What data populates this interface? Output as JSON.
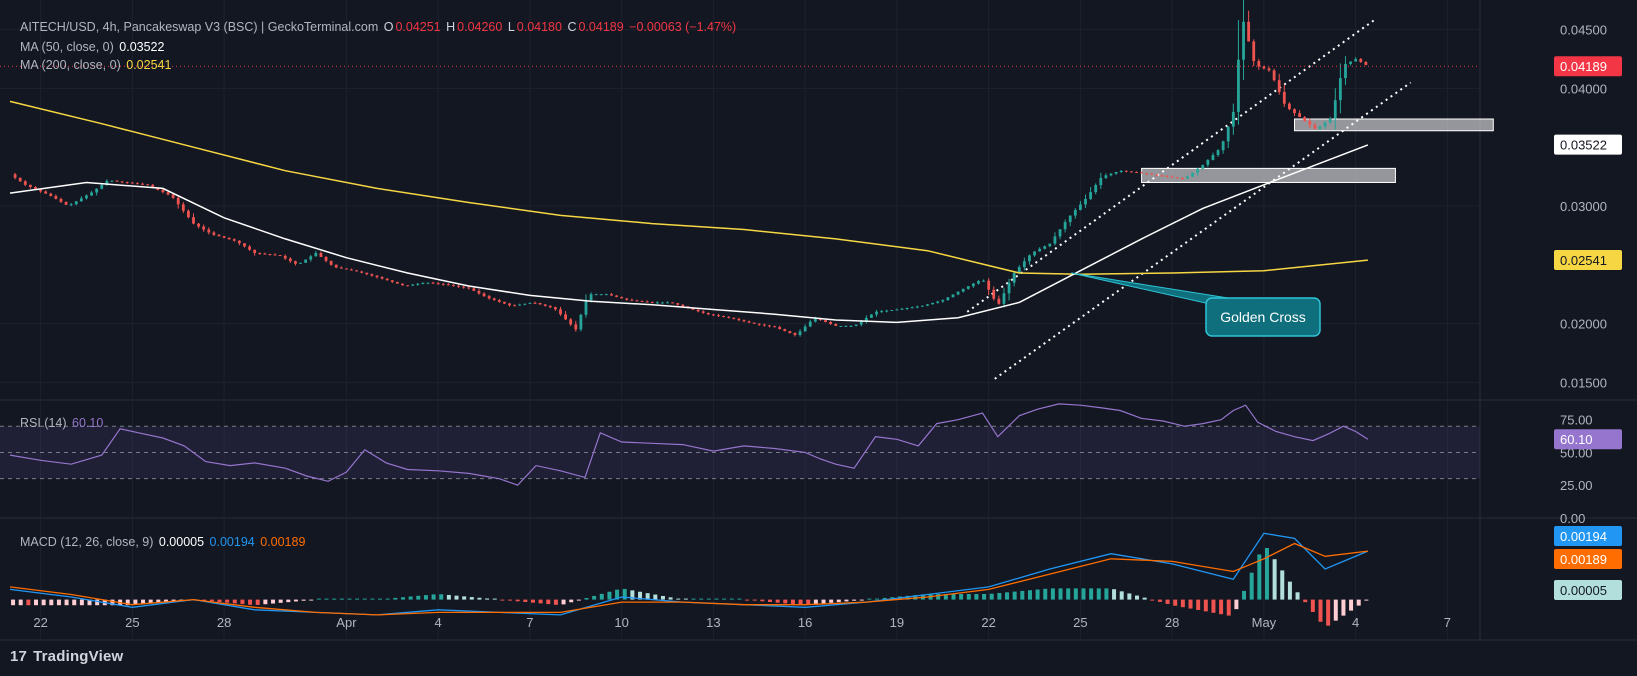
{
  "header": {
    "symbol": "AITECH/USD, 4h, Pancakeswap V3 (BSC) | GeckoTerminal.com",
    "o_label": "O",
    "o_value": "0.04251",
    "h_label": "H",
    "h_value": "0.04260",
    "l_label": "L",
    "l_value": "0.04180",
    "c_label": "C",
    "c_value": "0.04189",
    "change": "−0.00063 (−1.47%)"
  },
  "ma50": {
    "label": "MA (50, close, 0)",
    "value": "0.03522",
    "color": "#ffffff"
  },
  "ma200": {
    "label": "MA (200, close, 0)",
    "value": "0.02541",
    "color": "#f6d743"
  },
  "rsi": {
    "label": "RSI (14)",
    "value": "60.10",
    "color": "#9575cd"
  },
  "macd": {
    "label": "MACD (12, 26, close, 9)",
    "hist": "0.00005",
    "macd_line": "0.00194",
    "signal": "0.00189"
  },
  "annotation": {
    "text": "Golden Cross"
  },
  "branding": {
    "text": "TradingView",
    "mark": "17"
  },
  "colors": {
    "background": "#131722",
    "up": "#26a69a",
    "down": "#ef5350",
    "ma50": "#ffffff",
    "ma200": "#f6d743",
    "rsi": "#9575cd",
    "macd": "#2196f3",
    "signal": "#ff6d00",
    "annotation": "#0f6f7c"
  },
  "chart_data": {
    "type": "candlestick",
    "y_ticks": [
      "0.04500",
      "0.04000",
      "0.03522",
      "0.03000",
      "0.02541",
      "0.02000",
      "0.01500"
    ],
    "ylim": [
      0.0135,
      0.0465
    ],
    "x_ticks": [
      "22",
      "25",
      "28",
      "Apr",
      "4",
      "7",
      "10",
      "13",
      "16",
      "19",
      "22",
      "25",
      "28",
      "May",
      "4",
      "7"
    ],
    "x_domain": [
      "Mar 21",
      "May 8"
    ],
    "last_price": "0.04189",
    "price_path": [
      [
        0,
        0.0327
      ],
      [
        0.5,
        0.0318
      ],
      [
        1.3,
        0.0309
      ],
      [
        1.9,
        0.03
      ],
      [
        2.7,
        0.0312
      ],
      [
        3.2,
        0.0322
      ],
      [
        3.8,
        0.032
      ],
      [
        4.5,
        0.0318
      ],
      [
        5.3,
        0.0308
      ],
      [
        6.0,
        0.0285
      ],
      [
        6.6,
        0.0276
      ],
      [
        7.4,
        0.027
      ],
      [
        8.0,
        0.026
      ],
      [
        8.8,
        0.0258
      ],
      [
        9.4,
        0.025
      ],
      [
        10.0,
        0.026
      ],
      [
        10.6,
        0.0248
      ],
      [
        11.4,
        0.0244
      ],
      [
        12.2,
        0.0238
      ],
      [
        12.9,
        0.0232
      ],
      [
        13.6,
        0.0235
      ],
      [
        14.3,
        0.0233
      ],
      [
        15.0,
        0.023
      ],
      [
        15.6,
        0.0222
      ],
      [
        16.4,
        0.0215
      ],
      [
        17.1,
        0.0218
      ],
      [
        17.8,
        0.0213
      ],
      [
        18.5,
        0.0195
      ],
      [
        18.9,
        0.0225
      ],
      [
        19.5,
        0.0225
      ],
      [
        20.2,
        0.022
      ],
      [
        21.0,
        0.0218
      ],
      [
        21.6,
        0.0218
      ],
      [
        22.3,
        0.0212
      ],
      [
        22.8,
        0.0208
      ],
      [
        23.5,
        0.0205
      ],
      [
        24.3,
        0.02
      ],
      [
        25.0,
        0.0197
      ],
      [
        25.7,
        0.019
      ],
      [
        26.3,
        0.0205
      ],
      [
        27.0,
        0.0198
      ],
      [
        27.6,
        0.0198
      ],
      [
        28.3,
        0.021
      ],
      [
        29.0,
        0.0212
      ],
      [
        29.8,
        0.0215
      ],
      [
        30.5,
        0.022
      ],
      [
        31.2,
        0.023
      ],
      [
        31.8,
        0.0238
      ],
      [
        32.3,
        0.0215
      ],
      [
        32.8,
        0.0242
      ],
      [
        33.4,
        0.026
      ],
      [
        34.0,
        0.0268
      ],
      [
        34.6,
        0.029
      ],
      [
        35.2,
        0.0307
      ],
      [
        35.7,
        0.0325
      ],
      [
        36.3,
        0.033
      ],
      [
        37.0,
        0.0328
      ],
      [
        37.8,
        0.0325
      ],
      [
        38.4,
        0.0323
      ],
      [
        39.0,
        0.0335
      ],
      [
        39.6,
        0.035
      ],
      [
        40.0,
        0.038
      ],
      [
        40.3,
        0.046
      ],
      [
        40.7,
        0.042
      ],
      [
        41.2,
        0.0415
      ],
      [
        41.7,
        0.0385
      ],
      [
        42.2,
        0.0375
      ],
      [
        42.7,
        0.0365
      ],
      [
        43.2,
        0.0375
      ],
      [
        43.6,
        0.042
      ],
      [
        44.0,
        0.0425
      ],
      [
        44.4,
        0.0419
      ]
    ],
    "ma50_path": [
      [
        0,
        0.0311
      ],
      [
        2.5,
        0.032
      ],
      [
        5,
        0.0315
      ],
      [
        7,
        0.029
      ],
      [
        9,
        0.0272
      ],
      [
        11,
        0.0256
      ],
      [
        13,
        0.0243
      ],
      [
        15,
        0.0232
      ],
      [
        17,
        0.0224
      ],
      [
        19,
        0.0219
      ],
      [
        21,
        0.0216
      ],
      [
        23,
        0.0212
      ],
      [
        25,
        0.0208
      ],
      [
        27,
        0.0203
      ],
      [
        29,
        0.0201
      ],
      [
        31,
        0.0205
      ],
      [
        33,
        0.0218
      ],
      [
        35,
        0.0245
      ],
      [
        37,
        0.0272
      ],
      [
        39,
        0.0298
      ],
      [
        41,
        0.0318
      ],
      [
        43,
        0.0338
      ],
      [
        44.4,
        0.0352
      ]
    ],
    "ma200_path": [
      [
        0,
        0.0389
      ],
      [
        3,
        0.037
      ],
      [
        6,
        0.035
      ],
      [
        9,
        0.033
      ],
      [
        12,
        0.0315
      ],
      [
        15,
        0.0303
      ],
      [
        18,
        0.0292
      ],
      [
        21,
        0.0285
      ],
      [
        24,
        0.028
      ],
      [
        27,
        0.0272
      ],
      [
        30,
        0.0262
      ],
      [
        33,
        0.0243
      ],
      [
        35,
        0.0242
      ],
      [
        38,
        0.0243
      ],
      [
        41,
        0.0245
      ],
      [
        44.4,
        0.0254
      ]
    ],
    "channel_upper": [
      [
        31.3,
        0.021
      ],
      [
        44.6,
        0.0458
      ]
    ],
    "channel_lower": [
      [
        32.2,
        0.0153
      ],
      [
        45.8,
        0.0405
      ]
    ],
    "support_zones": [
      {
        "x0": 37.0,
        "x1": 45.3,
        "y0": 0.032,
        "y1": 0.0332
      },
      {
        "x0": 42.0,
        "x1": 48.5,
        "y0": 0.0364,
        "y1": 0.0374
      }
    ],
    "golden_cross_point": [
      34.7,
      0.0243
    ],
    "rsi_ticks": [
      "75.00",
      "50.00",
      "25.00",
      "0.00"
    ],
    "rsi_ylim": [
      0,
      90
    ],
    "rsi_band": [
      30,
      70
    ],
    "rsi_path": [
      [
        0,
        48
      ],
      [
        1,
        44
      ],
      [
        2,
        41
      ],
      [
        3,
        48
      ],
      [
        3.6,
        68
      ],
      [
        4.2,
        65
      ],
      [
        5,
        61
      ],
      [
        5.7,
        55
      ],
      [
        6.4,
        43
      ],
      [
        7.2,
        40
      ],
      [
        8,
        42
      ],
      [
        9,
        38
      ],
      [
        9.7,
        32
      ],
      [
        10.4,
        28
      ],
      [
        11,
        35
      ],
      [
        11.6,
        52
      ],
      [
        12.3,
        42
      ],
      [
        13,
        37
      ],
      [
        14,
        36
      ],
      [
        15,
        34
      ],
      [
        16,
        30
      ],
      [
        16.6,
        25
      ],
      [
        17.2,
        40
      ],
      [
        18,
        36
      ],
      [
        18.8,
        31
      ],
      [
        19.3,
        65
      ],
      [
        20,
        58
      ],
      [
        21,
        57
      ],
      [
        22,
        56
      ],
      [
        23,
        51
      ],
      [
        24,
        55
      ],
      [
        25,
        53
      ],
      [
        26,
        50
      ],
      [
        26.5,
        45
      ],
      [
        27,
        41
      ],
      [
        27.6,
        38
      ],
      [
        28.3,
        62
      ],
      [
        29,
        60
      ],
      [
        29.7,
        55
      ],
      [
        30.3,
        72
      ],
      [
        31,
        75
      ],
      [
        31.8,
        80
      ],
      [
        32.3,
        62
      ],
      [
        33,
        78
      ],
      [
        33.6,
        83
      ],
      [
        34.3,
        87
      ],
      [
        35,
        86
      ],
      [
        35.7,
        84
      ],
      [
        36.3,
        82
      ],
      [
        37,
        76
      ],
      [
        37.7,
        74
      ],
      [
        38.4,
        70
      ],
      [
        39,
        72
      ],
      [
        39.6,
        75
      ],
      [
        40,
        82
      ],
      [
        40.4,
        86
      ],
      [
        40.8,
        73
      ],
      [
        41.4,
        66
      ],
      [
        42,
        62
      ],
      [
        42.6,
        59
      ],
      [
        43.1,
        64
      ],
      [
        43.6,
        70
      ],
      [
        44,
        66
      ],
      [
        44.4,
        60
      ]
    ],
    "macd_ticks": [
      "0.00194",
      "0.00189",
      "0.00005"
    ],
    "macd_ylim": [
      -0.0008,
      0.0032
    ],
    "macd_path": [
      [
        0,
        0.0004
      ],
      [
        2,
        0.0001
      ],
      [
        4,
        -0.0003
      ],
      [
        6,
        0.0
      ],
      [
        8,
        -0.0004
      ],
      [
        10,
        -0.0005
      ],
      [
        12,
        -0.0006
      ],
      [
        14,
        -0.0004
      ],
      [
        16,
        -0.0005
      ],
      [
        18,
        -0.0006
      ],
      [
        20,
        0.0001
      ],
      [
        22,
        -0.0001
      ],
      [
        24,
        -0.0002
      ],
      [
        26,
        -0.0003
      ],
      [
        28,
        -0.0001
      ],
      [
        30,
        0.0002
      ],
      [
        32,
        0.0005
      ],
      [
        34,
        0.0012
      ],
      [
        36,
        0.0018
      ],
      [
        38,
        0.0014
      ],
      [
        40,
        0.0008
      ],
      [
        41,
        0.0026
      ],
      [
        42,
        0.0024
      ],
      [
        43,
        0.0012
      ],
      [
        44.4,
        0.0019
      ]
    ],
    "signal_path": [
      [
        0,
        0.0005
      ],
      [
        2,
        0.0002
      ],
      [
        4,
        -0.0002
      ],
      [
        6,
        0.0
      ],
      [
        8,
        -0.0003
      ],
      [
        10,
        -0.0005
      ],
      [
        12,
        -0.0006
      ],
      [
        14,
        -0.0005
      ],
      [
        16,
        -0.0005
      ],
      [
        18,
        -0.0005
      ],
      [
        20,
        -0.0001
      ],
      [
        22,
        -0.0001
      ],
      [
        24,
        -0.0002
      ],
      [
        26,
        -0.0002
      ],
      [
        28,
        -0.0001
      ],
      [
        30,
        0.0001
      ],
      [
        32,
        0.0004
      ],
      [
        34,
        0.001
      ],
      [
        36,
        0.0016
      ],
      [
        38,
        0.0015
      ],
      [
        40,
        0.0011
      ],
      [
        41,
        0.0016
      ],
      [
        42,
        0.0022
      ],
      [
        43,
        0.0017
      ],
      [
        44.4,
        0.0019
      ]
    ]
  }
}
